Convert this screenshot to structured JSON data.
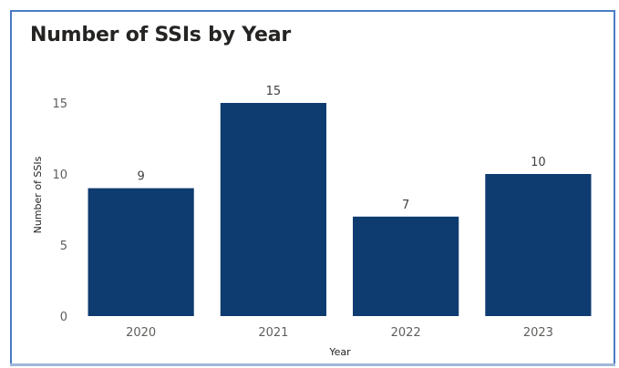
{
  "chart_data": {
    "type": "bar",
    "title": "Number of SSIs by Year",
    "xlabel": "Year",
    "ylabel": "Number of SSIs",
    "categories": [
      "2020",
      "2021",
      "2022",
      "2023"
    ],
    "values": [
      9,
      15,
      7,
      10
    ],
    "ylim": [
      0,
      17
    ],
    "yticks": [
      0,
      5,
      10,
      15
    ],
    "grid": false,
    "data_labels": true,
    "bar_color": "#0e3b70"
  }
}
